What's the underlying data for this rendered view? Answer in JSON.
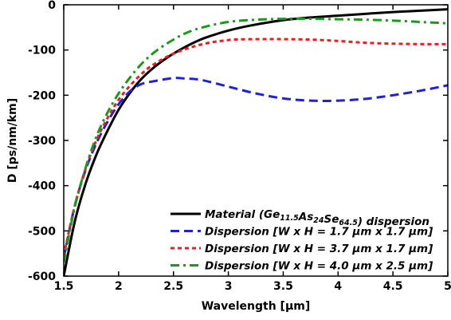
{
  "chart_data": {
    "type": "line",
    "title": "",
    "xlabel": "Wavelength [µm]",
    "ylabel": "D [ps/nm/km]",
    "xlim": [
      1.5,
      5
    ],
    "ylim": [
      -600,
      0
    ],
    "xticks": [
      1.5,
      2,
      2.5,
      3,
      3.5,
      4,
      4.5,
      5
    ],
    "yticks": [
      -600,
      -500,
      -400,
      -300,
      -200,
      -100,
      0
    ],
    "xtick_labels": [
      "1.5",
      "2",
      "2.5",
      "3",
      "3.5",
      "4",
      "4.5",
      "5"
    ],
    "ytick_labels": [
      "-600",
      "-500",
      "-400",
      "-300",
      "-200",
      "-100",
      "0"
    ],
    "grid": false,
    "legend_position": "bottom-right",
    "series": [
      {
        "id": "material",
        "name": "Material (Ge11.5As24Se64.5) dispersion",
        "legend_parts": [
          {
            "t": "Material (Ge",
            "sub": false
          },
          {
            "t": "11.5",
            "sub": true
          },
          {
            "t": "As",
            "sub": false
          },
          {
            "t": "24",
            "sub": true
          },
          {
            "t": "Se",
            "sub": false
          },
          {
            "t": "64.5",
            "sub": true
          },
          {
            "t": ") dispersion",
            "sub": false
          }
        ],
        "color": "#000000",
        "dash": "solid",
        "x": [
          1.5,
          1.6,
          1.7,
          1.8,
          1.9,
          2.0,
          2.1,
          2.2,
          2.3,
          2.4,
          2.5,
          2.6,
          2.7,
          2.8,
          3.0,
          3.2,
          3.5,
          3.75,
          4.0,
          4.25,
          4.5,
          4.75,
          5.0
        ],
        "y": [
          -600,
          -480,
          -395,
          -330,
          -278,
          -232,
          -196,
          -166,
          -143,
          -124,
          -108,
          -94,
          -82,
          -72,
          -57,
          -46,
          -34,
          -28,
          -24,
          -20,
          -16,
          -13,
          -10
        ]
      },
      {
        "id": "disp1",
        "name": "Dispersion [W x H = 1.7 µm x 1.7 µm]",
        "legend_parts": [
          {
            "t": "Dispersion [W x H = 1.7 µm x 1.7 µm]",
            "sub": false
          }
        ],
        "color": "#1f1fdc",
        "dash": "dashed",
        "x": [
          1.5,
          1.6,
          1.7,
          1.8,
          1.9,
          2.0,
          2.1,
          2.2,
          2.3,
          2.5,
          2.6,
          2.75,
          3.0,
          3.25,
          3.5,
          3.75,
          4.0,
          4.25,
          4.5,
          4.75,
          5.0
        ],
        "y": [
          -560,
          -445,
          -365,
          -305,
          -258,
          -220,
          -192,
          -176,
          -170,
          -162,
          -163,
          -166,
          -181,
          -196,
          -207,
          -212,
          -212,
          -208,
          -200,
          -190,
          -178
        ]
      },
      {
        "id": "disp2",
        "name": "Dispersion [W x H = 3.7 µm x 1.7 µm]",
        "legend_parts": [
          {
            "t": "Dispersion [W x H = 3.7 µm x 1.7 µm]",
            "sub": false
          }
        ],
        "color": "#ee1c1c",
        "dash": "dotted",
        "x": [
          1.5,
          1.6,
          1.7,
          1.8,
          1.9,
          2.0,
          2.1,
          2.2,
          2.3,
          2.5,
          2.75,
          3.0,
          3.25,
          3.5,
          3.75,
          4.0,
          4.25,
          4.5,
          4.75,
          5.0
        ],
        "y": [
          -555,
          -445,
          -362,
          -298,
          -250,
          -210,
          -180,
          -155,
          -135,
          -108,
          -88,
          -78,
          -76,
          -76,
          -77,
          -80,
          -84,
          -86,
          -87,
          -87
        ]
      },
      {
        "id": "disp3",
        "name": "Dispersion [W x H = 4.0 µm x 2.5 µm]",
        "legend_parts": [
          {
            "t": "Dispersion [W x H = 4.0 µm x 2.5 µm]",
            "sub": false
          }
        ],
        "color": "#1a9a1a",
        "dash": "dashdot",
        "x": [
          1.5,
          1.6,
          1.7,
          1.8,
          1.9,
          2.0,
          2.1,
          2.2,
          2.3,
          2.4,
          2.5,
          2.6,
          2.75,
          3.0,
          3.25,
          3.5,
          3.75,
          4.0,
          4.25,
          4.5,
          4.75,
          5.0
        ],
        "y": [
          -570,
          -448,
          -360,
          -290,
          -238,
          -196,
          -162,
          -133,
          -110,
          -92,
          -77,
          -64,
          -51,
          -38,
          -33,
          -31,
          -31,
          -32,
          -33,
          -35,
          -38,
          -41
        ]
      }
    ]
  }
}
